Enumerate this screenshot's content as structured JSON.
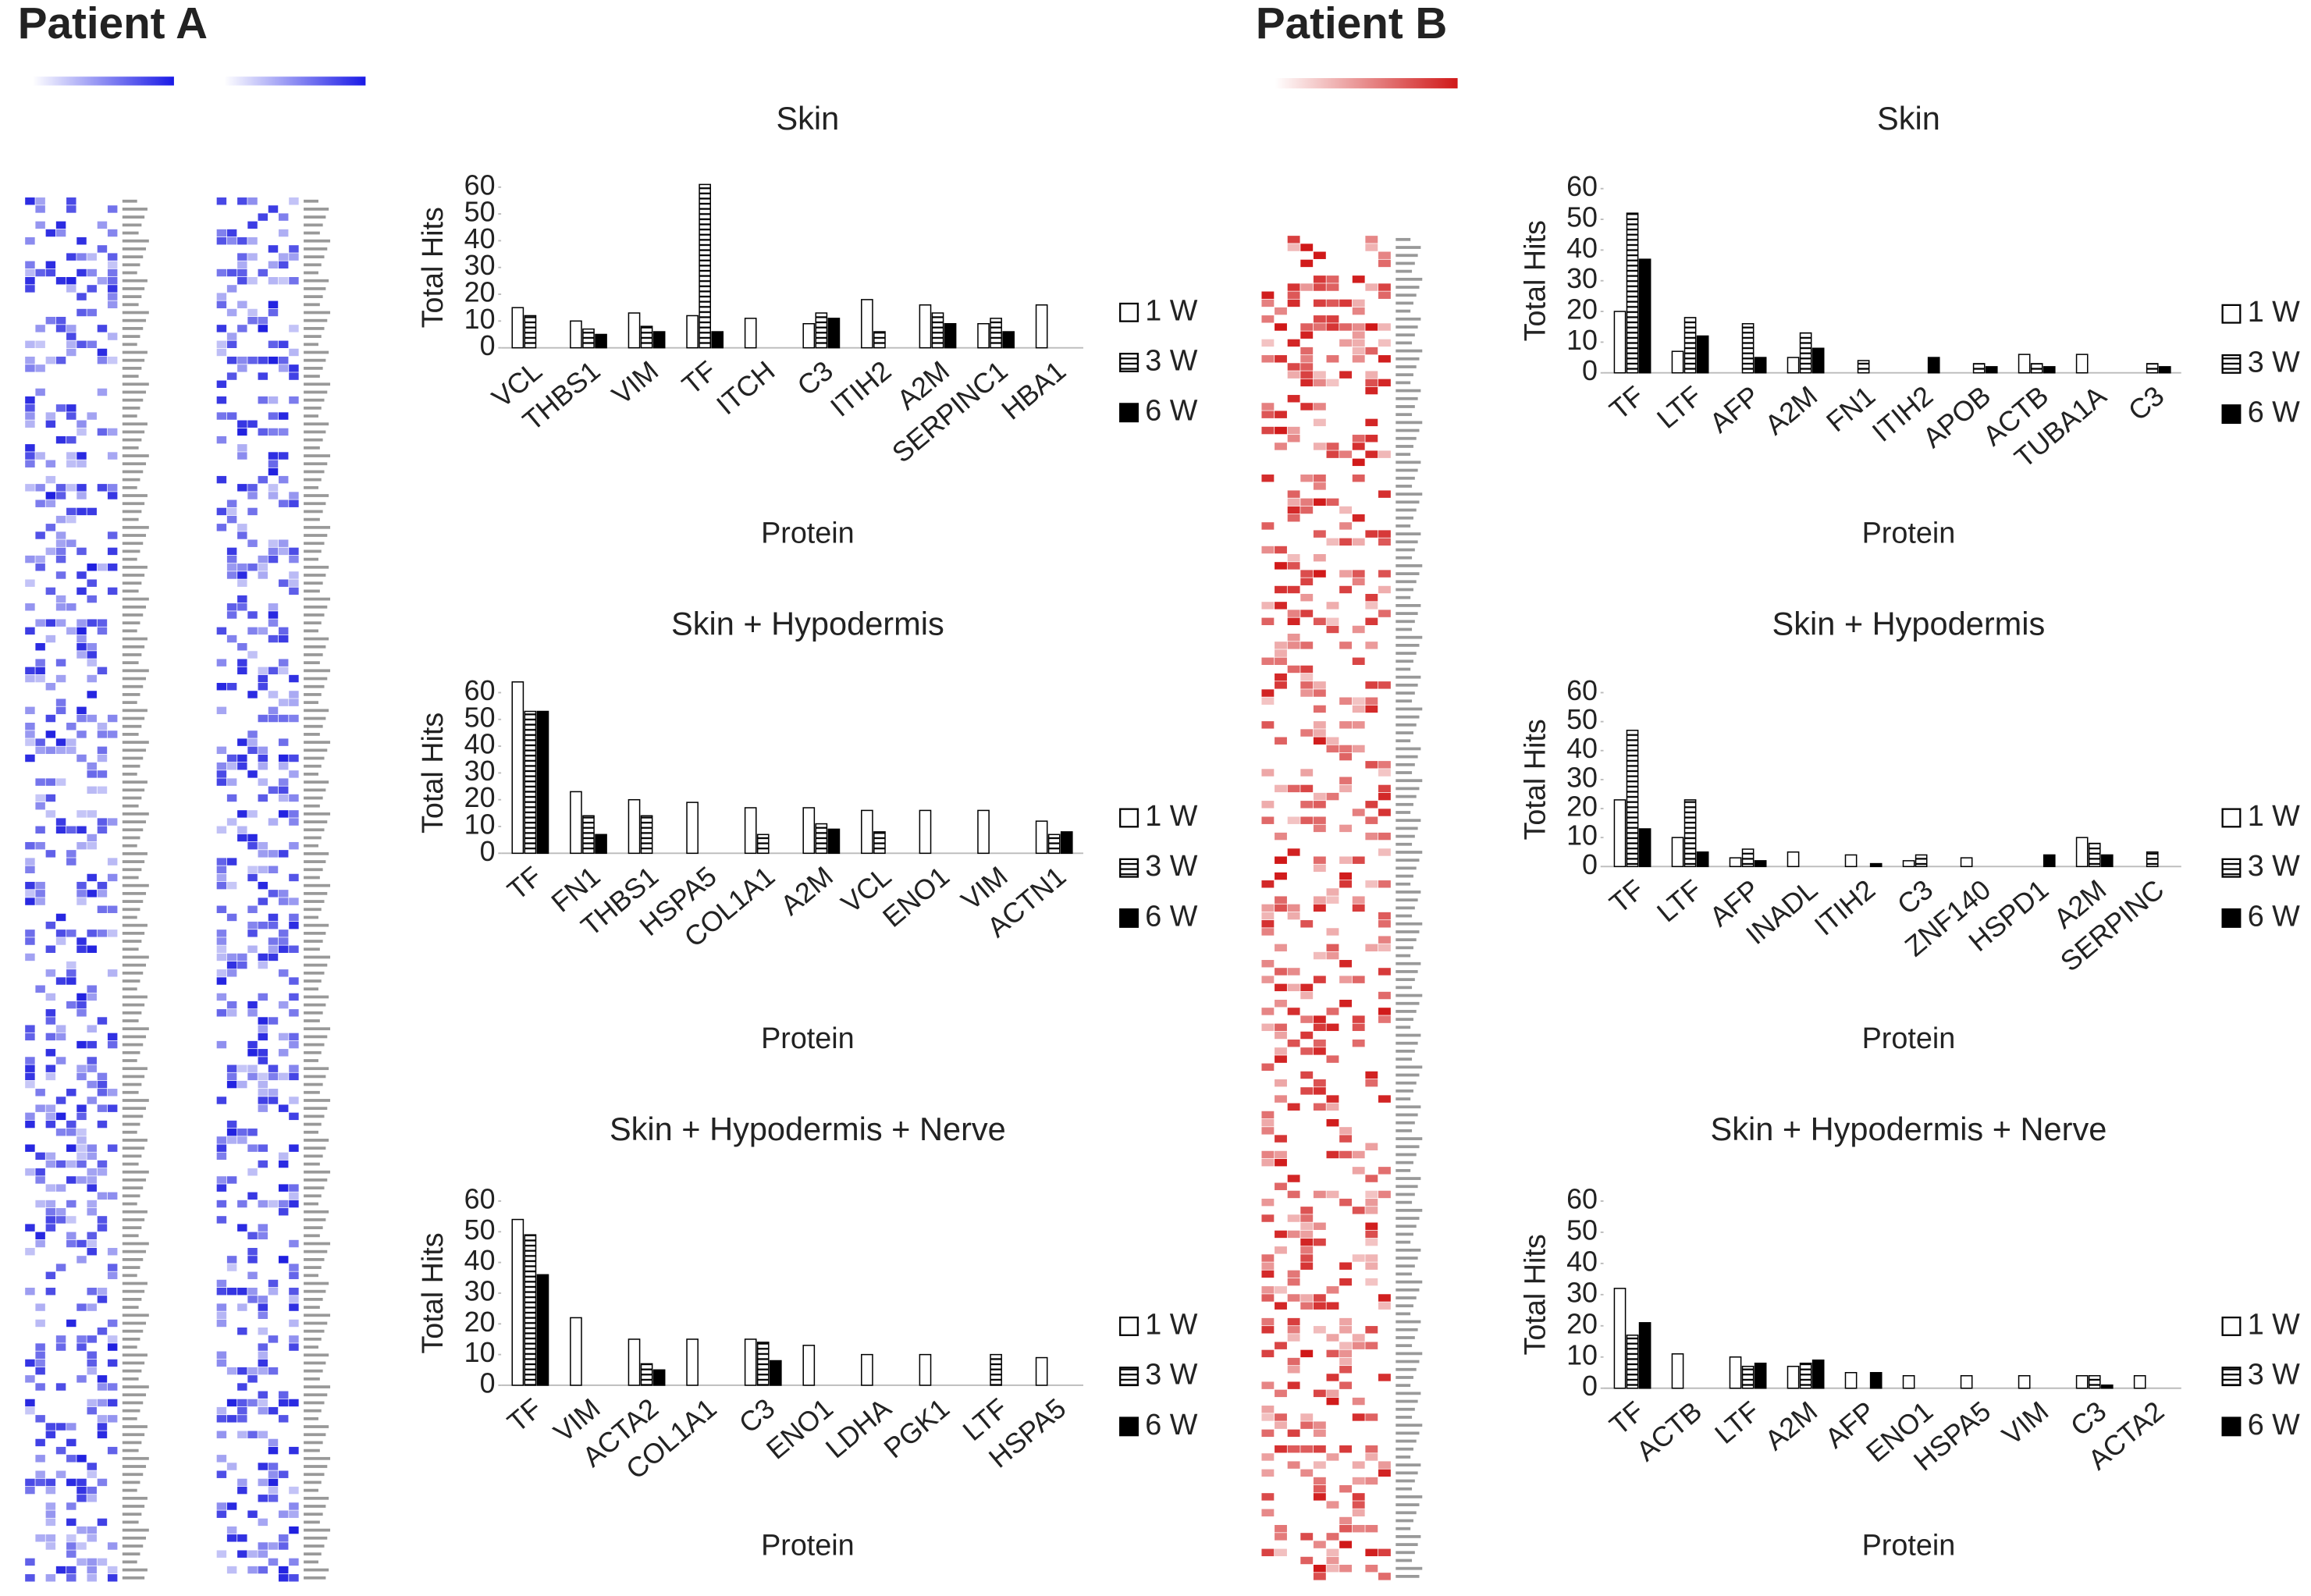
{
  "headers": [
    "Patient A",
    "Patient B"
  ],
  "chart_data": [
    {
      "type": "bar",
      "title": "Skin",
      "x_label": "Protein",
      "y_label": "Total Hits",
      "categories": [
        "VCL",
        "THBS1",
        "VIM",
        "TF",
        "ITCH",
        "C3",
        "ITIH2",
        "A2M",
        "SERPINC1",
        "HBA1"
      ],
      "series": [
        {
          "name": "1 W",
          "color": "#ffffff",
          "values": [
            15,
            10,
            13,
            12,
            11,
            9,
            18,
            16,
            9,
            16
          ]
        },
        {
          "name": "3 W",
          "color": "#ffffff",
          "hatch": "horizontal",
          "values": [
            12,
            7,
            8,
            61,
            0,
            13,
            6,
            13,
            11,
            0
          ]
        },
        {
          "name": "6 W",
          "color": "#000000",
          "values": [
            0,
            5,
            6,
            6,
            0,
            11,
            0,
            9,
            6,
            0
          ]
        }
      ],
      "ylim": [
        0,
        60
      ],
      "yticks": [
        0,
        10,
        20,
        30,
        40,
        50,
        60
      ]
    },
    {
      "type": "bar",
      "title": "Skin + Hypodermis",
      "x_label": "Protein",
      "y_label": "Total Hits",
      "categories": [
        "TF",
        "FN1",
        "THBS1",
        "HSPA5",
        "COL1A1",
        "A2M",
        "VCL",
        "ENO1",
        "VIM",
        "ACTN1"
      ],
      "series": [
        {
          "name": "1 W",
          "color": "#ffffff",
          "values": [
            64,
            23,
            20,
            19,
            17,
            17,
            16,
            16,
            16,
            12
          ]
        },
        {
          "name": "3 W",
          "color": "#ffffff",
          "hatch": "horizontal",
          "values": [
            53,
            14,
            14,
            0,
            7,
            11,
            8,
            0,
            0,
            7
          ]
        },
        {
          "name": "6 W",
          "color": "#000000",
          "values": [
            53,
            7,
            0,
            0,
            0,
            9,
            0,
            0,
            0,
            8
          ]
        }
      ],
      "ylim": [
        0,
        60
      ],
      "yticks": [
        0,
        10,
        20,
        30,
        40,
        50,
        60
      ]
    },
    {
      "type": "bar",
      "title": "Skin + Hypodermis + Nerve",
      "x_label": "Protein",
      "y_label": "Total Hits",
      "categories": [
        "TF",
        "VIM",
        "ACTA2",
        "COL1A1",
        "C3",
        "ENO1",
        "LDHA",
        "PGK1",
        "LTF",
        "HSPA5"
      ],
      "series": [
        {
          "name": "1 W",
          "color": "#ffffff",
          "values": [
            54,
            22,
            15,
            15,
            15,
            13,
            10,
            10,
            0,
            9
          ]
        },
        {
          "name": "3 W",
          "color": "#ffffff",
          "hatch": "horizontal",
          "values": [
            49,
            0,
            7,
            0,
            14,
            0,
            0,
            0,
            10,
            0
          ]
        },
        {
          "name": "6 W",
          "color": "#000000",
          "values": [
            36,
            0,
            5,
            0,
            8,
            0,
            0,
            0,
            0,
            0
          ]
        }
      ],
      "ylim": [
        0,
        60
      ],
      "yticks": [
        0,
        10,
        20,
        30,
        40,
        50,
        60
      ]
    },
    {
      "type": "bar",
      "title": "Skin",
      "x_label": "Protein",
      "y_label": "Total Hits",
      "categories": [
        "TF",
        "LTF",
        "AFP",
        "A2M",
        "FN1",
        "ITIH2",
        "APOB",
        "ACTB",
        "TUBA1A",
        "C3"
      ],
      "series": [
        {
          "name": "1 W",
          "color": "#ffffff",
          "values": [
            20,
            7,
            0,
            5,
            0,
            0,
            0,
            6,
            6,
            0
          ]
        },
        {
          "name": "3 W",
          "color": "#ffffff",
          "hatch": "horizontal",
          "values": [
            52,
            18,
            16,
            13,
            4,
            0,
            3,
            3,
            0,
            3
          ]
        },
        {
          "name": "6 W",
          "color": "#000000",
          "values": [
            37,
            12,
            5,
            8,
            0,
            5,
            2,
            2,
            0,
            2
          ]
        }
      ],
      "ylim": [
        0,
        60
      ],
      "yticks": [
        0,
        10,
        20,
        30,
        40,
        50,
        60
      ]
    },
    {
      "type": "bar",
      "title": "Skin + Hypodermis",
      "x_label": "Protein",
      "y_label": "Total Hits",
      "categories": [
        "TF",
        "LTF",
        "AFP",
        "INADL",
        "ITIH2",
        "C3",
        "ZNF140",
        "HSPD1",
        "A2M",
        "SERPINC"
      ],
      "series": [
        {
          "name": "1 W",
          "color": "#ffffff",
          "values": [
            23,
            10,
            3,
            5,
            4,
            2,
            3,
            0,
            10,
            0
          ]
        },
        {
          "name": "3 W",
          "color": "#ffffff",
          "hatch": "horizontal",
          "values": [
            47,
            23,
            6,
            0,
            0,
            4,
            0,
            0,
            8,
            5
          ]
        },
        {
          "name": "6 W",
          "color": "#000000",
          "values": [
            13,
            5,
            2,
            0,
            1,
            0,
            0,
            4,
            4,
            0
          ]
        }
      ],
      "ylim": [
        0,
        60
      ],
      "yticks": [
        0,
        10,
        20,
        30,
        40,
        50,
        60
      ]
    },
    {
      "type": "bar",
      "title": "Skin + Hypodermis + Nerve",
      "x_label": "Protein",
      "y_label": "Total Hits",
      "categories": [
        "TF",
        "ACTB",
        "LTF",
        "A2M",
        "AFP",
        "ENO1",
        "HSPA5",
        "VIM",
        "C3",
        "ACTA2"
      ],
      "series": [
        {
          "name": "1 W",
          "color": "#ffffff",
          "values": [
            32,
            11,
            10,
            7,
            5,
            4,
            4,
            4,
            4,
            4
          ]
        },
        {
          "name": "3 W",
          "color": "#ffffff",
          "hatch": "horizontal",
          "values": [
            17,
            0,
            7,
            8,
            0,
            0,
            0,
            0,
            4,
            0
          ]
        },
        {
          "name": "6 W",
          "color": "#000000",
          "values": [
            21,
            0,
            8,
            9,
            5,
            0,
            0,
            0,
            1,
            0
          ]
        }
      ],
      "ylim": [
        0,
        60
      ],
      "yticks": [
        0,
        10,
        20,
        30,
        40,
        50,
        60
      ]
    }
  ]
}
